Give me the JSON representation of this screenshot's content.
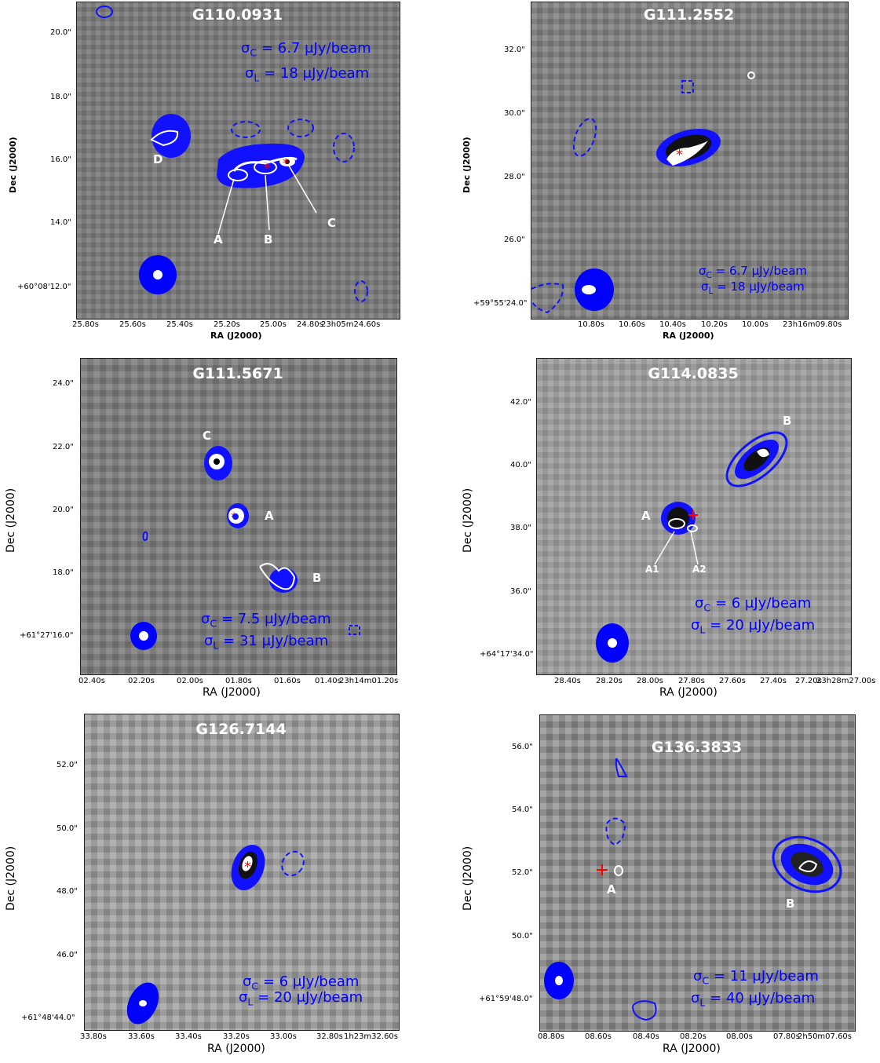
{
  "panels": [
    {
      "id": "p1",
      "title": "G110.0931",
      "sigma_c": "6.7 μJy/beam",
      "sigma_l": "18 μJy/beam",
      "xlabel": "RA (J2000)",
      "ylabel": "Dec (J2000)",
      "xticks": [
        "25.80s",
        "25.60s",
        "25.40s",
        "25.20s",
        "25.00s",
        "24.80s",
        "23h05m24.60s"
      ],
      "yticks": [
        "20.0\"",
        "18.0\"",
        "16.0\"",
        "14.0\"",
        "+60°08'12.0\""
      ],
      "sources": [
        "A",
        "B",
        "C",
        "D"
      ]
    },
    {
      "id": "p2",
      "title": "G111.2552",
      "sigma_c": "6.7 μJy/beam",
      "sigma_l": "18 μJy/beam",
      "xlabel": "RA (J2000)",
      "ylabel": "Dec (J2000)",
      "xticks": [
        "10.80s",
        "10.60s",
        "10.40s",
        "10.20s",
        "10.00s",
        "23h16m09.80s"
      ],
      "yticks": [
        "32.0\"",
        "30.0\"",
        "28.0\"",
        "26.0\"",
        "+59°55'24.0\""
      ],
      "sources": []
    },
    {
      "id": "p3",
      "title": "G111.5671",
      "sigma_c": "7.5 μJy/beam",
      "sigma_l": "31 μJy/beam",
      "xlabel": "RA (J2000)",
      "ylabel": "Dec (J2000)",
      "xticks": [
        "02.40s",
        "02.20s",
        "02.00s",
        "01.80s",
        "01.60s",
        "01.40s",
        "23h14m01.20s"
      ],
      "yticks": [
        "24.0\"",
        "22.0\"",
        "20.0\"",
        "18.0\"",
        "+61°27'16.0\""
      ],
      "sources": [
        "C",
        "A",
        "B"
      ]
    },
    {
      "id": "p4",
      "title": "G114.0835",
      "sigma_c": "6 μJy/beam",
      "sigma_l": "20 μJy/beam",
      "xlabel": "RA (J2000)",
      "ylabel": "Dec (J2000)",
      "xticks": [
        "28.40s",
        "28.20s",
        "28.00s",
        "27.80s",
        "27.60s",
        "27.40s",
        "27.20s",
        "23h28m27.00s"
      ],
      "yticks": [
        "42.0\"",
        "40.0\"",
        "38.0\"",
        "36.0\"",
        "+64°17'34.0\""
      ],
      "sources": [
        "B",
        "A",
        "A1",
        "A2"
      ]
    },
    {
      "id": "p5",
      "title": "G126.7144",
      "sigma_c": "6 μJy/beam",
      "sigma_l": "20 μJy/beam",
      "xlabel": "RA (J2000)",
      "ylabel": "Dec (J2000)",
      "xticks": [
        "33.80s",
        "33.60s",
        "33.40s",
        "33.20s",
        "33.00s",
        "32.80s",
        "1h23m32.60s"
      ],
      "yticks": [
        "52.0\"",
        "50.0\"",
        "48.0\"",
        "46.0\"",
        "+61°48'44.0\""
      ],
      "sources": []
    },
    {
      "id": "p6",
      "title": "G136.3833",
      "sigma_c": "11 μJy/beam",
      "sigma_l": "40 μJy/beam",
      "xlabel": "RA (J2000)",
      "ylabel": "Dec (J2000)",
      "xticks": [
        "08.80s",
        "08.60s",
        "08.40s",
        "08.20s",
        "08.00s",
        "07.80s",
        "2h50m07.60s"
      ],
      "yticks": [
        "56.0\"",
        "54.0\"",
        "52.0\"",
        "50.0\"",
        "+61°59'48.0\""
      ],
      "sources": [
        "A",
        "B"
      ]
    }
  ],
  "sigma_prefix_c": "σ",
  "sigma_sub_c": "C",
  "sigma_sub_l": "L",
  "eq": " = "
}
